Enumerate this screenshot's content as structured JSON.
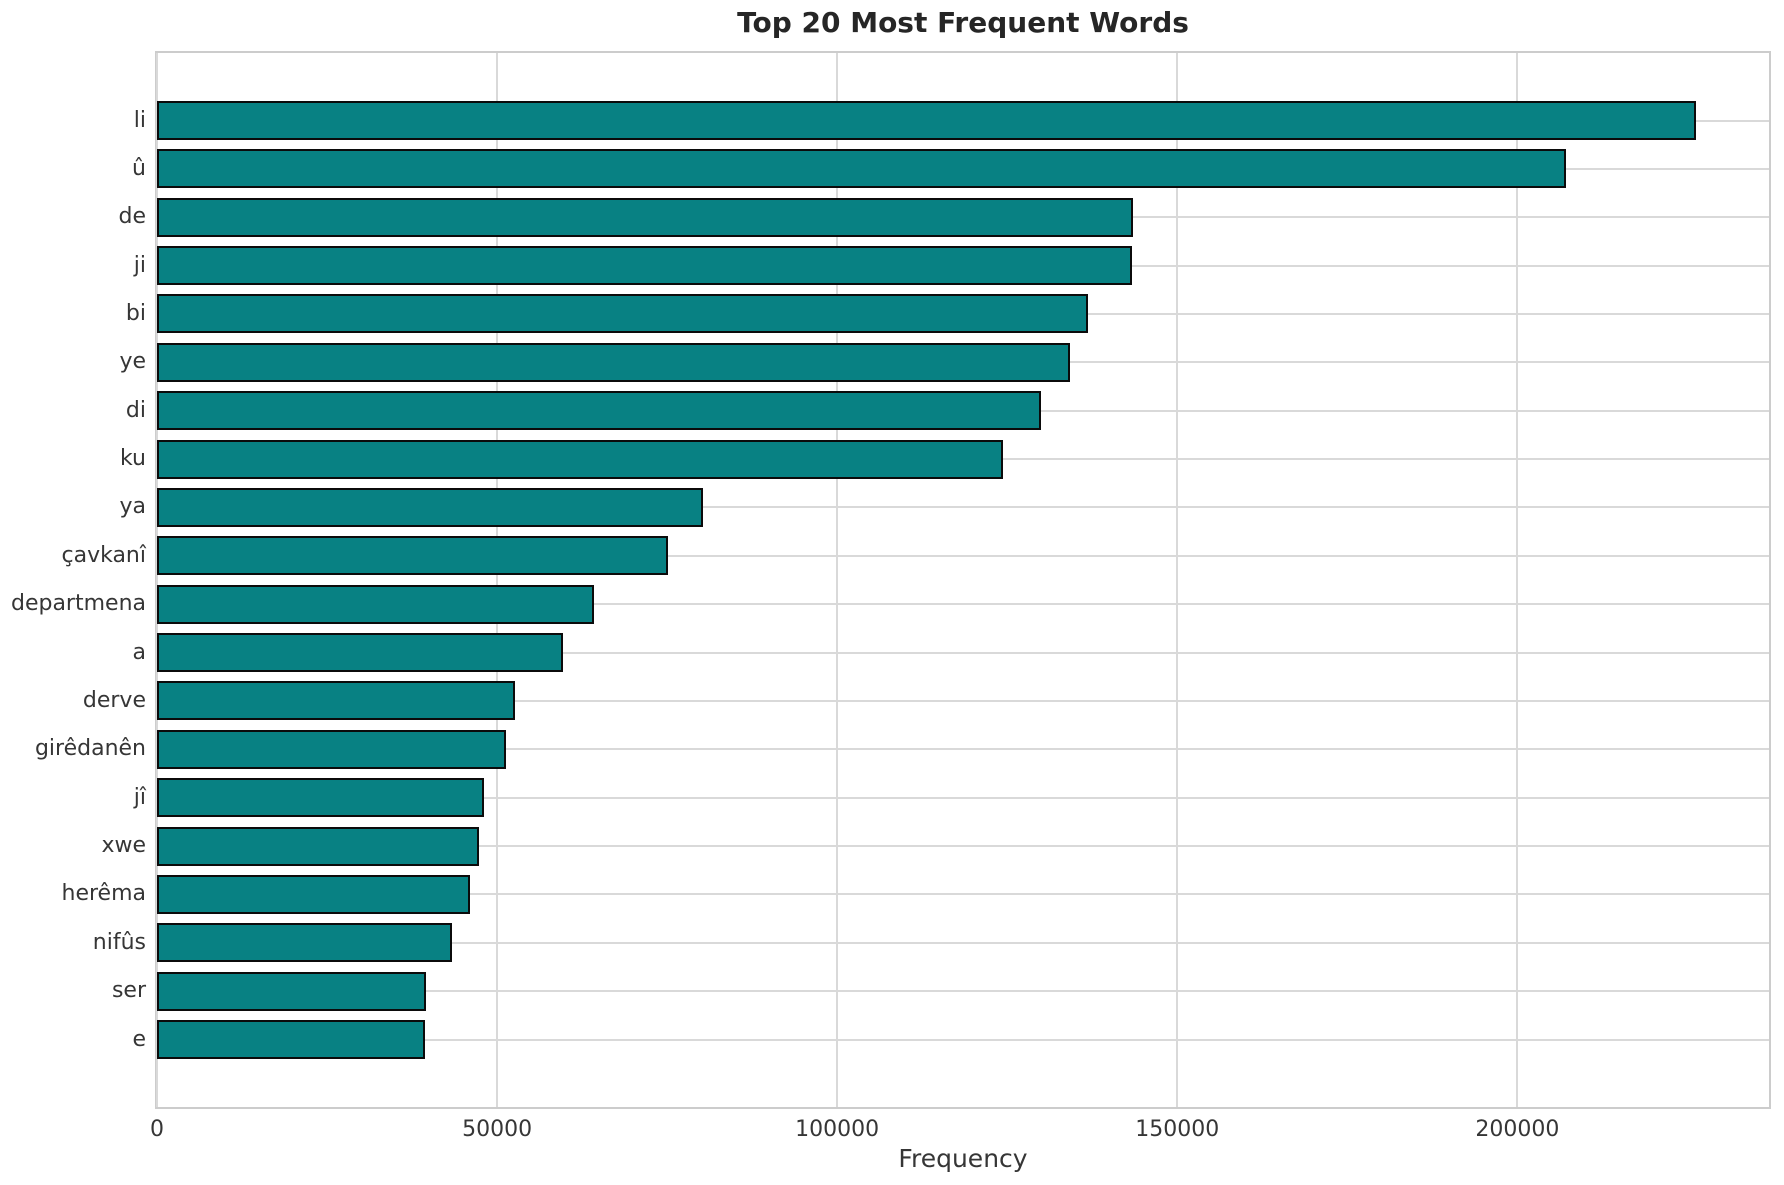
{
  "chart_data": {
    "type": "bar",
    "orientation": "horizontal",
    "title": "Top 20 Most Frequent Words",
    "xlabel": "Frequency",
    "ylabel": "",
    "categories": [
      "li",
      "û",
      "de",
      "ji",
      "bi",
      "ye",
      "di",
      "ku",
      "ya",
      "çavkanî",
      "departmena",
      "a",
      "derve",
      "girêdanên",
      "jî",
      "xwe",
      "herêma",
      "nifûs",
      "ser",
      "e"
    ],
    "values": [
      226200,
      207200,
      143500,
      143400,
      136900,
      134300,
      130000,
      124400,
      80300,
      75200,
      64300,
      59700,
      52700,
      51300,
      48100,
      47400,
      46000,
      43400,
      39600,
      39400
    ],
    "xticks": [
      0,
      50000,
      100000,
      150000,
      200000
    ],
    "xlim": [
      0,
      237000
    ],
    "grid": true,
    "legend_position": "none",
    "colors": {
      "bar_fill": "#088183",
      "bar_edge": "#0b0b0b",
      "grid": "#d9d9d9",
      "spine": "#cccccc",
      "title_text": "#262626",
      "tick_text": "#363636",
      "background": "#ffffff"
    }
  }
}
